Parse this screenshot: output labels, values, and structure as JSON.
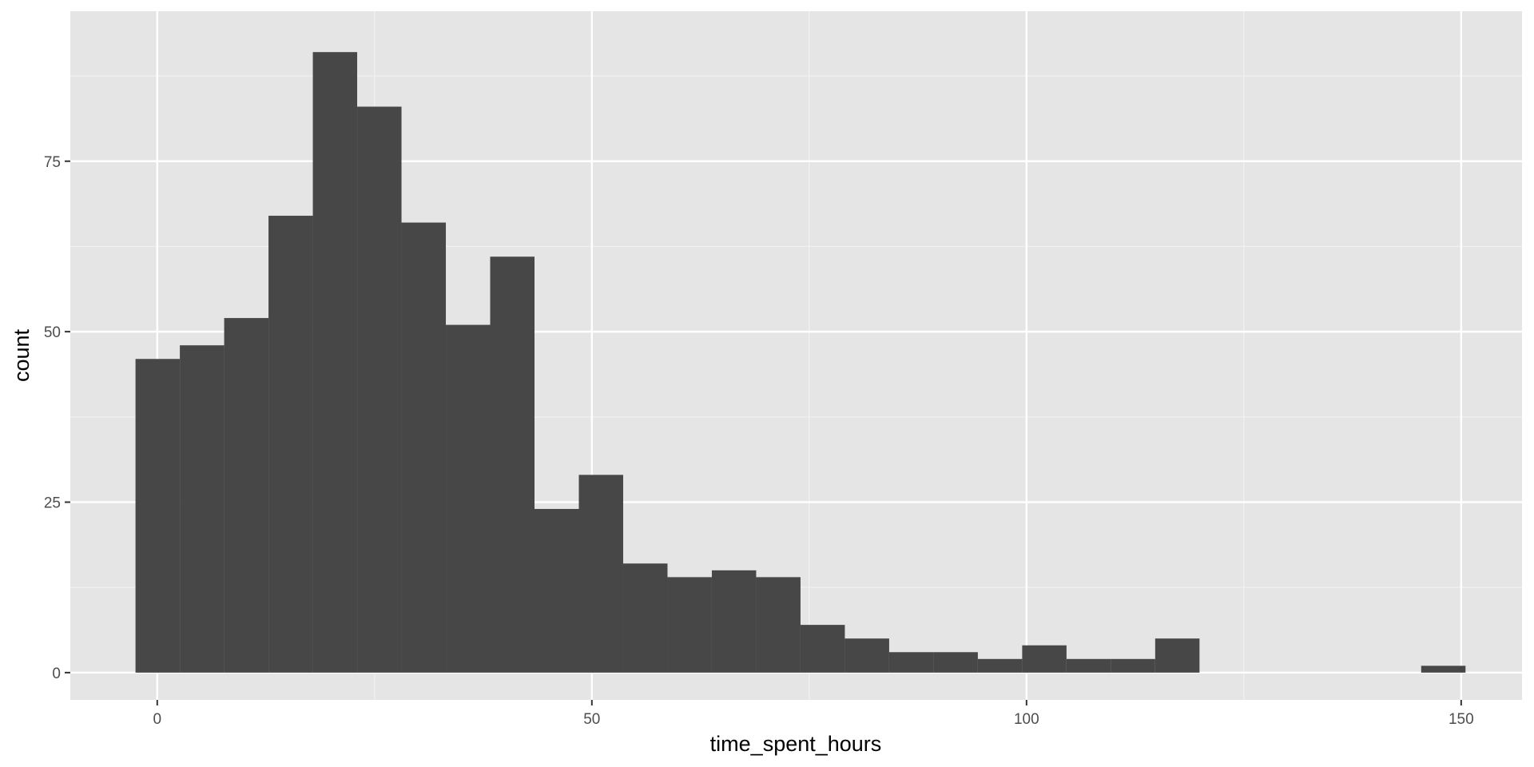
{
  "chart_data": {
    "type": "bar",
    "subtype": "histogram",
    "title": "",
    "xlabel": "time_spent_hours",
    "ylabel": "count",
    "xlim": [
      -10,
      157
    ],
    "ylim": [
      -4,
      97
    ],
    "x_ticks": [
      0,
      50,
      100,
      150
    ],
    "x_tick_labels": [
      "0",
      "50",
      "100",
      "150"
    ],
    "y_ticks": [
      0,
      25,
      50,
      75
    ],
    "y_tick_labels": [
      "0",
      "25",
      "50",
      "75"
    ],
    "bin_width": 5.1,
    "bin_start": -2.5,
    "values": [
      46,
      48,
      52,
      67,
      91,
      83,
      66,
      51,
      61,
      24,
      29,
      16,
      14,
      15,
      14,
      7,
      5,
      3,
      3,
      2,
      4,
      2,
      2,
      5,
      0,
      0,
      0,
      0,
      0,
      1
    ],
    "grid": true,
    "legend": "none",
    "colors": {
      "panel": "#e5e5e5",
      "grid_major": "#ffffff",
      "grid_minor": "#f2f2f2",
      "bar": "#474747",
      "tick": "#333333"
    }
  }
}
